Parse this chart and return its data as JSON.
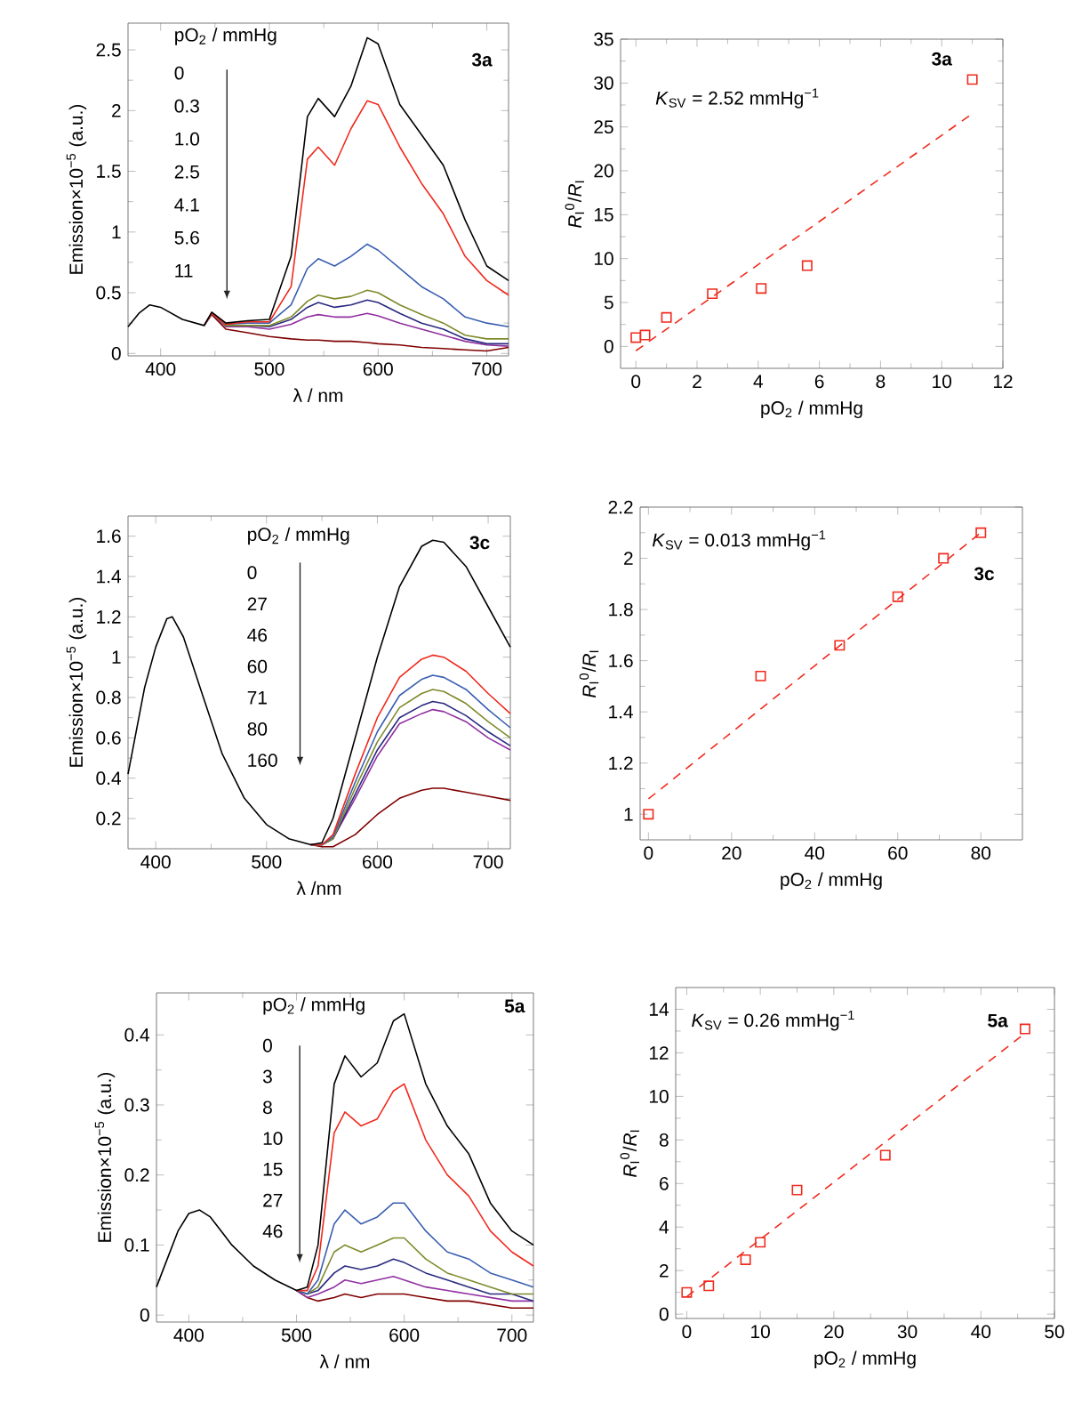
{
  "chart_data": [
    {
      "type": "line",
      "title": "3a",
      "xlabel": "λ / nm",
      "ylabel": "Emission×10$^{−5}$ (a.u.)",
      "xlim": [
        370,
        720
      ],
      "ylim": [
        -0.02,
        2.72
      ],
      "xticks": [
        400,
        500,
        600,
        700
      ],
      "yticks": [
        0,
        0.5,
        1,
        1.5,
        2,
        2.5
      ],
      "annotations": [
        "pO$_{2}$ / mmHg",
        "0",
        "0.3",
        "1.0",
        "2.5",
        "4.1",
        "5.6",
        "11"
      ],
      "x": [
        370,
        380,
        390,
        400,
        420,
        440,
        447,
        460,
        480,
        500,
        520,
        535,
        545,
        560,
        575,
        590,
        600,
        620,
        640,
        660,
        680,
        700,
        720
      ],
      "series": [
        {
          "color": "#000000",
          "values": [
            0.22,
            0.33,
            0.4,
            0.38,
            0.28,
            0.23,
            0.34,
            0.25,
            0.27,
            0.28,
            0.8,
            1.95,
            2.1,
            1.95,
            2.2,
            2.6,
            2.55,
            2.05,
            1.8,
            1.55,
            1.1,
            0.72,
            0.6
          ]
        },
        {
          "color": "#f02a1e",
          "values": [
            null,
            null,
            null,
            null,
            null,
            0.23,
            0.33,
            0.24,
            0.26,
            0.26,
            0.55,
            1.6,
            1.7,
            1.55,
            1.85,
            2.08,
            2.05,
            1.7,
            1.4,
            1.15,
            0.8,
            0.6,
            0.48
          ]
        },
        {
          "color": "#3a5fb0",
          "values": [
            null,
            null,
            null,
            null,
            null,
            0.23,
            0.33,
            0.24,
            0.25,
            0.25,
            0.4,
            0.7,
            0.78,
            0.72,
            0.8,
            0.9,
            0.85,
            0.7,
            0.55,
            0.45,
            0.3,
            0.25,
            0.22
          ]
        },
        {
          "color": "#7f8a2a",
          "values": [
            null,
            null,
            null,
            null,
            null,
            0.23,
            0.33,
            0.23,
            0.23,
            0.23,
            0.3,
            0.43,
            0.48,
            0.45,
            0.47,
            0.52,
            0.5,
            0.4,
            0.32,
            0.25,
            0.15,
            0.12,
            0.12
          ]
        },
        {
          "color": "#2a2a80",
          "values": [
            null,
            null,
            null,
            null,
            null,
            0.23,
            0.33,
            0.23,
            0.23,
            0.22,
            0.28,
            0.38,
            0.42,
            0.38,
            0.4,
            0.44,
            0.42,
            0.33,
            0.25,
            0.2,
            0.12,
            0.08,
            0.08
          ]
        },
        {
          "color": "#9030a0",
          "values": [
            null,
            null,
            null,
            null,
            null,
            0.23,
            0.33,
            0.22,
            0.22,
            0.2,
            0.24,
            0.3,
            0.32,
            0.3,
            0.3,
            0.33,
            0.31,
            0.25,
            0.2,
            0.15,
            0.1,
            0.07,
            0.06
          ]
        },
        {
          "color": "#800000",
          "values": [
            null,
            null,
            null,
            null,
            null,
            0.23,
            0.32,
            0.2,
            0.17,
            0.14,
            0.12,
            0.11,
            0.11,
            0.1,
            0.1,
            0.09,
            0.08,
            0.07,
            0.05,
            0.04,
            0.03,
            0.02,
            0.05
          ]
        }
      ]
    },
    {
      "type": "scatter",
      "title": "3a",
      "xlabel": "pO$_{2}$ / mmHg",
      "ylabel": "*R*$_{I}$$^{0}$/*R*$_{I}$",
      "xlim": [
        -0.5,
        12
      ],
      "ylim": [
        -2.5,
        35
      ],
      "xticks": [
        0,
        2,
        4,
        6,
        8,
        10,
        12
      ],
      "yticks": [
        0,
        5,
        10,
        15,
        20,
        25,
        30,
        35
      ],
      "annotations": [
        "*K*$_{SV}$ = 2.52 mmHg$^{−1}$"
      ],
      "series": [
        {
          "type": "scatter",
          "marker": "square",
          "color": "#f02a1e",
          "x": [
            0,
            0.3,
            1,
            2.5,
            4.1,
            5.6,
            11
          ],
          "values": [
            1,
            1.3,
            3.3,
            6,
            6.6,
            9.2,
            30.4
          ]
        },
        {
          "type": "line",
          "color": "#f02a1e",
          "line_style": "dashed",
          "x": [
            0,
            11
          ],
          "values": [
            -0.5,
            26.5
          ]
        }
      ]
    },
    {
      "type": "line",
      "title": "3c",
      "xlabel": "λ /nm",
      "ylabel": "Emission×10$^{−5}$ (a.u.)",
      "xlim": [
        375,
        720
      ],
      "ylim": [
        0.05,
        1.7
      ],
      "xticks": [
        400,
        500,
        600,
        700
      ],
      "yticks": [
        0.2,
        0.4,
        0.6,
        0.8,
        1,
        1.2,
        1.4,
        1.6
      ],
      "annotations": [
        "pO$_{2}$ / mmHg",
        "0",
        "27",
        "46",
        "60",
        "71",
        "80",
        "160"
      ],
      "x": [
        375,
        390,
        400,
        410,
        415,
        425,
        440,
        460,
        480,
        500,
        520,
        540,
        550,
        560,
        580,
        600,
        620,
        640,
        650,
        660,
        680,
        700,
        720
      ],
      "series": [
        {
          "color": "#000000",
          "values": [
            0.42,
            0.85,
            1.05,
            1.19,
            1.2,
            1.1,
            0.85,
            0.52,
            0.3,
            0.17,
            0.1,
            0.07,
            0.08,
            0.2,
            0.6,
            1.0,
            1.35,
            1.55,
            1.58,
            1.57,
            1.45,
            1.25,
            1.05
          ]
        },
        {
          "color": "#f02a1e",
          "values": [
            null,
            null,
            null,
            null,
            null,
            null,
            null,
            null,
            null,
            null,
            null,
            0.07,
            0.07,
            0.12,
            0.42,
            0.7,
            0.9,
            0.99,
            1.01,
            1.0,
            0.93,
            0.82,
            0.72
          ]
        },
        {
          "color": "#3a5fb0",
          "values": [
            null,
            null,
            null,
            null,
            null,
            null,
            null,
            null,
            null,
            null,
            null,
            0.07,
            0.07,
            0.11,
            0.38,
            0.63,
            0.81,
            0.89,
            0.91,
            0.9,
            0.84,
            0.74,
            0.65
          ]
        },
        {
          "color": "#7f8a2a",
          "values": [
            null,
            null,
            null,
            null,
            null,
            null,
            null,
            null,
            null,
            null,
            null,
            0.07,
            0.07,
            0.1,
            0.35,
            0.58,
            0.75,
            0.82,
            0.84,
            0.83,
            0.77,
            0.68,
            0.6
          ]
        },
        {
          "color": "#2a2a80",
          "values": [
            null,
            null,
            null,
            null,
            null,
            null,
            null,
            null,
            null,
            null,
            null,
            0.07,
            0.07,
            0.1,
            0.32,
            0.54,
            0.7,
            0.76,
            0.78,
            0.77,
            0.71,
            0.63,
            0.56
          ]
        },
        {
          "color": "#9030a0",
          "values": [
            null,
            null,
            null,
            null,
            null,
            null,
            null,
            null,
            null,
            null,
            null,
            0.07,
            0.07,
            0.1,
            0.3,
            0.51,
            0.67,
            0.72,
            0.74,
            0.73,
            0.68,
            0.6,
            0.54
          ]
        },
        {
          "color": "#800000",
          "values": [
            null,
            null,
            null,
            null,
            null,
            null,
            null,
            null,
            null,
            null,
            null,
            0.07,
            0.06,
            0.06,
            0.12,
            0.22,
            0.3,
            0.34,
            0.35,
            0.35,
            0.33,
            0.31,
            0.29
          ]
        }
      ]
    },
    {
      "type": "scatter",
      "title": "3c",
      "xlabel": "pO$_{2}$ / mmHg",
      "ylabel": "*R*$_{I}$$^{0}$/*R*$_{I}$",
      "xlim": [
        -2,
        90
      ],
      "ylim": [
        0.9,
        2.2
      ],
      "xticks": [
        0,
        20,
        40,
        60,
        80
      ],
      "yticks": [
        1,
        1.2,
        1.4,
        1.6,
        1.8,
        2,
        2.2
      ],
      "annotations": [
        "*K*$_{SV}$ = 0.013 mmHg$^{−1}$"
      ],
      "series": [
        {
          "type": "scatter",
          "marker": "square",
          "color": "#f02a1e",
          "x": [
            0,
            27,
            46,
            60,
            71,
            80
          ],
          "values": [
            1,
            1.54,
            1.66,
            1.85,
            2,
            2.1
          ]
        },
        {
          "type": "line",
          "color": "#f02a1e",
          "line_style": "dashed",
          "x": [
            0,
            80
          ],
          "values": [
            1.06,
            2.1
          ]
        }
      ]
    },
    {
      "type": "line",
      "title": "5a",
      "xlabel": "λ / nm",
      "ylabel": "Emission×10$^{−5}$ (a.u.)",
      "xlim": [
        370,
        720
      ],
      "ylim": [
        -0.01,
        0.46
      ],
      "xticks": [
        400,
        500,
        600,
        700
      ],
      "yticks": [
        0,
        0.1,
        0.2,
        0.3,
        0.4
      ],
      "annotations": [
        "pO$_{2}$ / mmHg",
        "0",
        "3",
        "8",
        "10",
        "15",
        "27",
        "46"
      ],
      "x": [
        370,
        380,
        390,
        400,
        410,
        420,
        440,
        460,
        480,
        500,
        510,
        520,
        535,
        545,
        560,
        575,
        590,
        600,
        620,
        640,
        660,
        680,
        700,
        720
      ],
      "series": [
        {
          "color": "#000000",
          "values": [
            0.04,
            0.08,
            0.12,
            0.145,
            0.15,
            0.14,
            0.1,
            0.07,
            0.05,
            0.035,
            0.04,
            0.1,
            0.33,
            0.37,
            0.34,
            0.36,
            0.42,
            0.43,
            0.33,
            0.27,
            0.23,
            0.16,
            0.12,
            0.1
          ]
        },
        {
          "color": "#f02a1e",
          "values": [
            null,
            null,
            null,
            null,
            null,
            null,
            null,
            null,
            null,
            0.035,
            0.035,
            0.07,
            0.26,
            0.29,
            0.27,
            0.28,
            0.32,
            0.33,
            0.25,
            0.2,
            0.17,
            0.12,
            0.09,
            0.07
          ]
        },
        {
          "color": "#3a5fb0",
          "values": [
            null,
            null,
            null,
            null,
            null,
            null,
            null,
            null,
            null,
            0.035,
            0.03,
            0.05,
            0.13,
            0.15,
            0.13,
            0.14,
            0.16,
            0.16,
            0.12,
            0.09,
            0.08,
            0.06,
            0.05,
            0.04
          ]
        },
        {
          "color": "#7f8a2a",
          "values": [
            null,
            null,
            null,
            null,
            null,
            null,
            null,
            null,
            null,
            0.035,
            0.03,
            0.04,
            0.09,
            0.1,
            0.09,
            0.1,
            0.11,
            0.11,
            0.08,
            0.06,
            0.05,
            0.04,
            0.03,
            0.03
          ]
        },
        {
          "color": "#2a2a80",
          "values": [
            null,
            null,
            null,
            null,
            null,
            null,
            null,
            null,
            null,
            0.035,
            0.03,
            0.035,
            0.06,
            0.07,
            0.065,
            0.07,
            0.08,
            0.075,
            0.06,
            0.05,
            0.04,
            0.03,
            0.03,
            0.02
          ]
        },
        {
          "color": "#9030a0",
          "values": [
            null,
            null,
            null,
            null,
            null,
            null,
            null,
            null,
            null,
            0.035,
            0.025,
            0.03,
            0.04,
            0.05,
            0.045,
            0.05,
            0.055,
            0.05,
            0.04,
            0.035,
            0.03,
            0.025,
            0.02,
            0.02
          ]
        },
        {
          "color": "#800000",
          "values": [
            null,
            null,
            null,
            null,
            null,
            null,
            null,
            null,
            null,
            0.035,
            0.025,
            0.02,
            0.025,
            0.03,
            0.025,
            0.03,
            0.03,
            0.03,
            0.025,
            0.02,
            0.02,
            0.015,
            0.01,
            0.01
          ]
        }
      ]
    },
    {
      "type": "scatter",
      "title": "5a",
      "xlabel": "pO$_{2}$ / mmHg",
      "ylabel": "*R*$_{I}$$^{0}$/*R*$_{I}$",
      "xlim": [
        -1.5,
        50
      ],
      "ylim": [
        -0.2,
        15
      ],
      "xticks": [
        0,
        10,
        20,
        30,
        40,
        50
      ],
      "yticks": [
        0,
        2,
        4,
        6,
        8,
        10,
        12,
        14
      ],
      "annotations": [
        "*K*$_{SV}$ = 0.26 mmHg$^{−1}$"
      ],
      "series": [
        {
          "type": "scatter",
          "marker": "square",
          "color": "#f02a1e",
          "x": [
            0,
            3,
            8,
            10,
            15,
            27,
            46
          ],
          "values": [
            1,
            1.3,
            2.5,
            3.3,
            5.7,
            7.3,
            13.1
          ]
        },
        {
          "type": "line",
          "color": "#f02a1e",
          "line_style": "dashed",
          "x": [
            0,
            46
          ],
          "values": [
            0.8,
            12.9
          ]
        }
      ]
    }
  ]
}
